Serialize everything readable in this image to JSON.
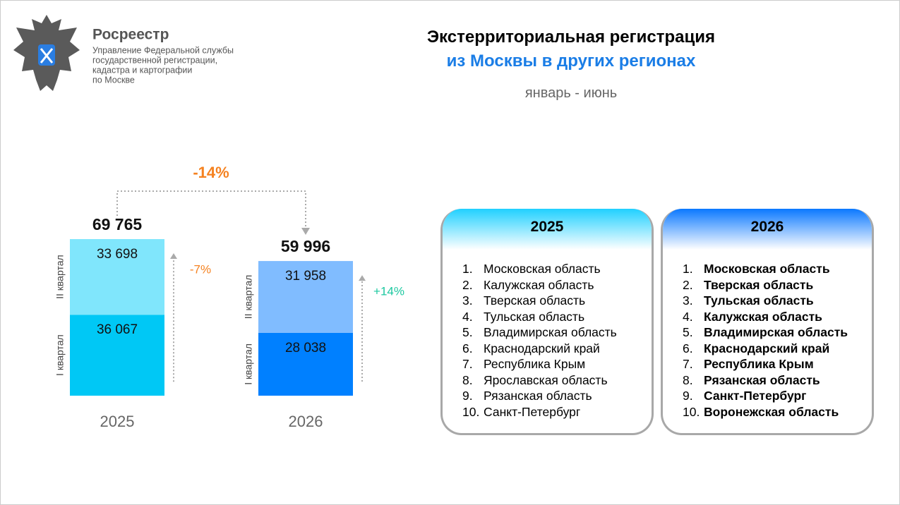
{
  "header": {
    "org": "Росреестр",
    "org_lines": [
      "Управление Федеральной службы",
      "государственной регистрации,",
      "кадастра и картографии",
      "по Москве"
    ],
    "title": "Экстерриториальная регистрация",
    "subtitle": "из Москвы в других регионах",
    "period": "январь - июнь"
  },
  "chart_data": {
    "type": "bar",
    "stacked": true,
    "categories": [
      "2025",
      "2026"
    ],
    "series": [
      {
        "name": "I квартал",
        "colors": [
          "#00c8f5",
          "#0080ff"
        ],
        "values": [
          36067,
          28038
        ],
        "value_labels": [
          "36 067",
          "28 038"
        ]
      },
      {
        "name": "II квартал",
        "colors": [
          "#80e6fc",
          "#80bcff"
        ],
        "values": [
          33698,
          31958
        ],
        "value_labels": [
          "33 698",
          "31 958"
        ]
      }
    ],
    "totals": [
      69765,
      59996
    ],
    "total_labels": [
      "69 765",
      "59 996"
    ],
    "total_change": "-14%",
    "changes": [
      {
        "label": "-7%",
        "color": "#f58220"
      },
      {
        "label": "+14%",
        "color": "#1cc8a0"
      }
    ]
  },
  "lists": [
    {
      "title": "2025",
      "bold": false,
      "items": [
        {
          "n": "1.",
          "name": "Московская область"
        },
        {
          "n": "2.",
          "name": "Калужская область"
        },
        {
          "n": "3.",
          "name": "Тверская область"
        },
        {
          "n": "4.",
          "name": "Тульская область"
        },
        {
          "n": "5.",
          "name": "Владимирская область"
        },
        {
          "n": "6.",
          "name": "Краснодарский край"
        },
        {
          "n": "7.",
          "name": "Республика Крым"
        },
        {
          "n": "8.",
          "name": "Ярославская область"
        },
        {
          "n": "9.",
          "name": "Рязанская область"
        },
        {
          "n": "10.",
          "name": "Санкт-Петербург"
        }
      ]
    },
    {
      "title": "2026",
      "bold": true,
      "items": [
        {
          "n": "1.",
          "name": "Московская область"
        },
        {
          "n": "2.",
          "name": "Тверская область"
        },
        {
          "n": "3.",
          "name": "Тульская область"
        },
        {
          "n": "4.",
          "name": "Калужская область"
        },
        {
          "n": "5.",
          "name": "Владимирская область"
        },
        {
          "n": "6.",
          "name": "Краснодарский край"
        },
        {
          "n": "7.",
          "name": "Республика Крым"
        },
        {
          "n": "8.",
          "name": "Рязанская область"
        },
        {
          "n": "9.",
          "name": "Санкт-Петербург"
        },
        {
          "n": "10.",
          "name": "Воронежская область"
        }
      ]
    }
  ]
}
